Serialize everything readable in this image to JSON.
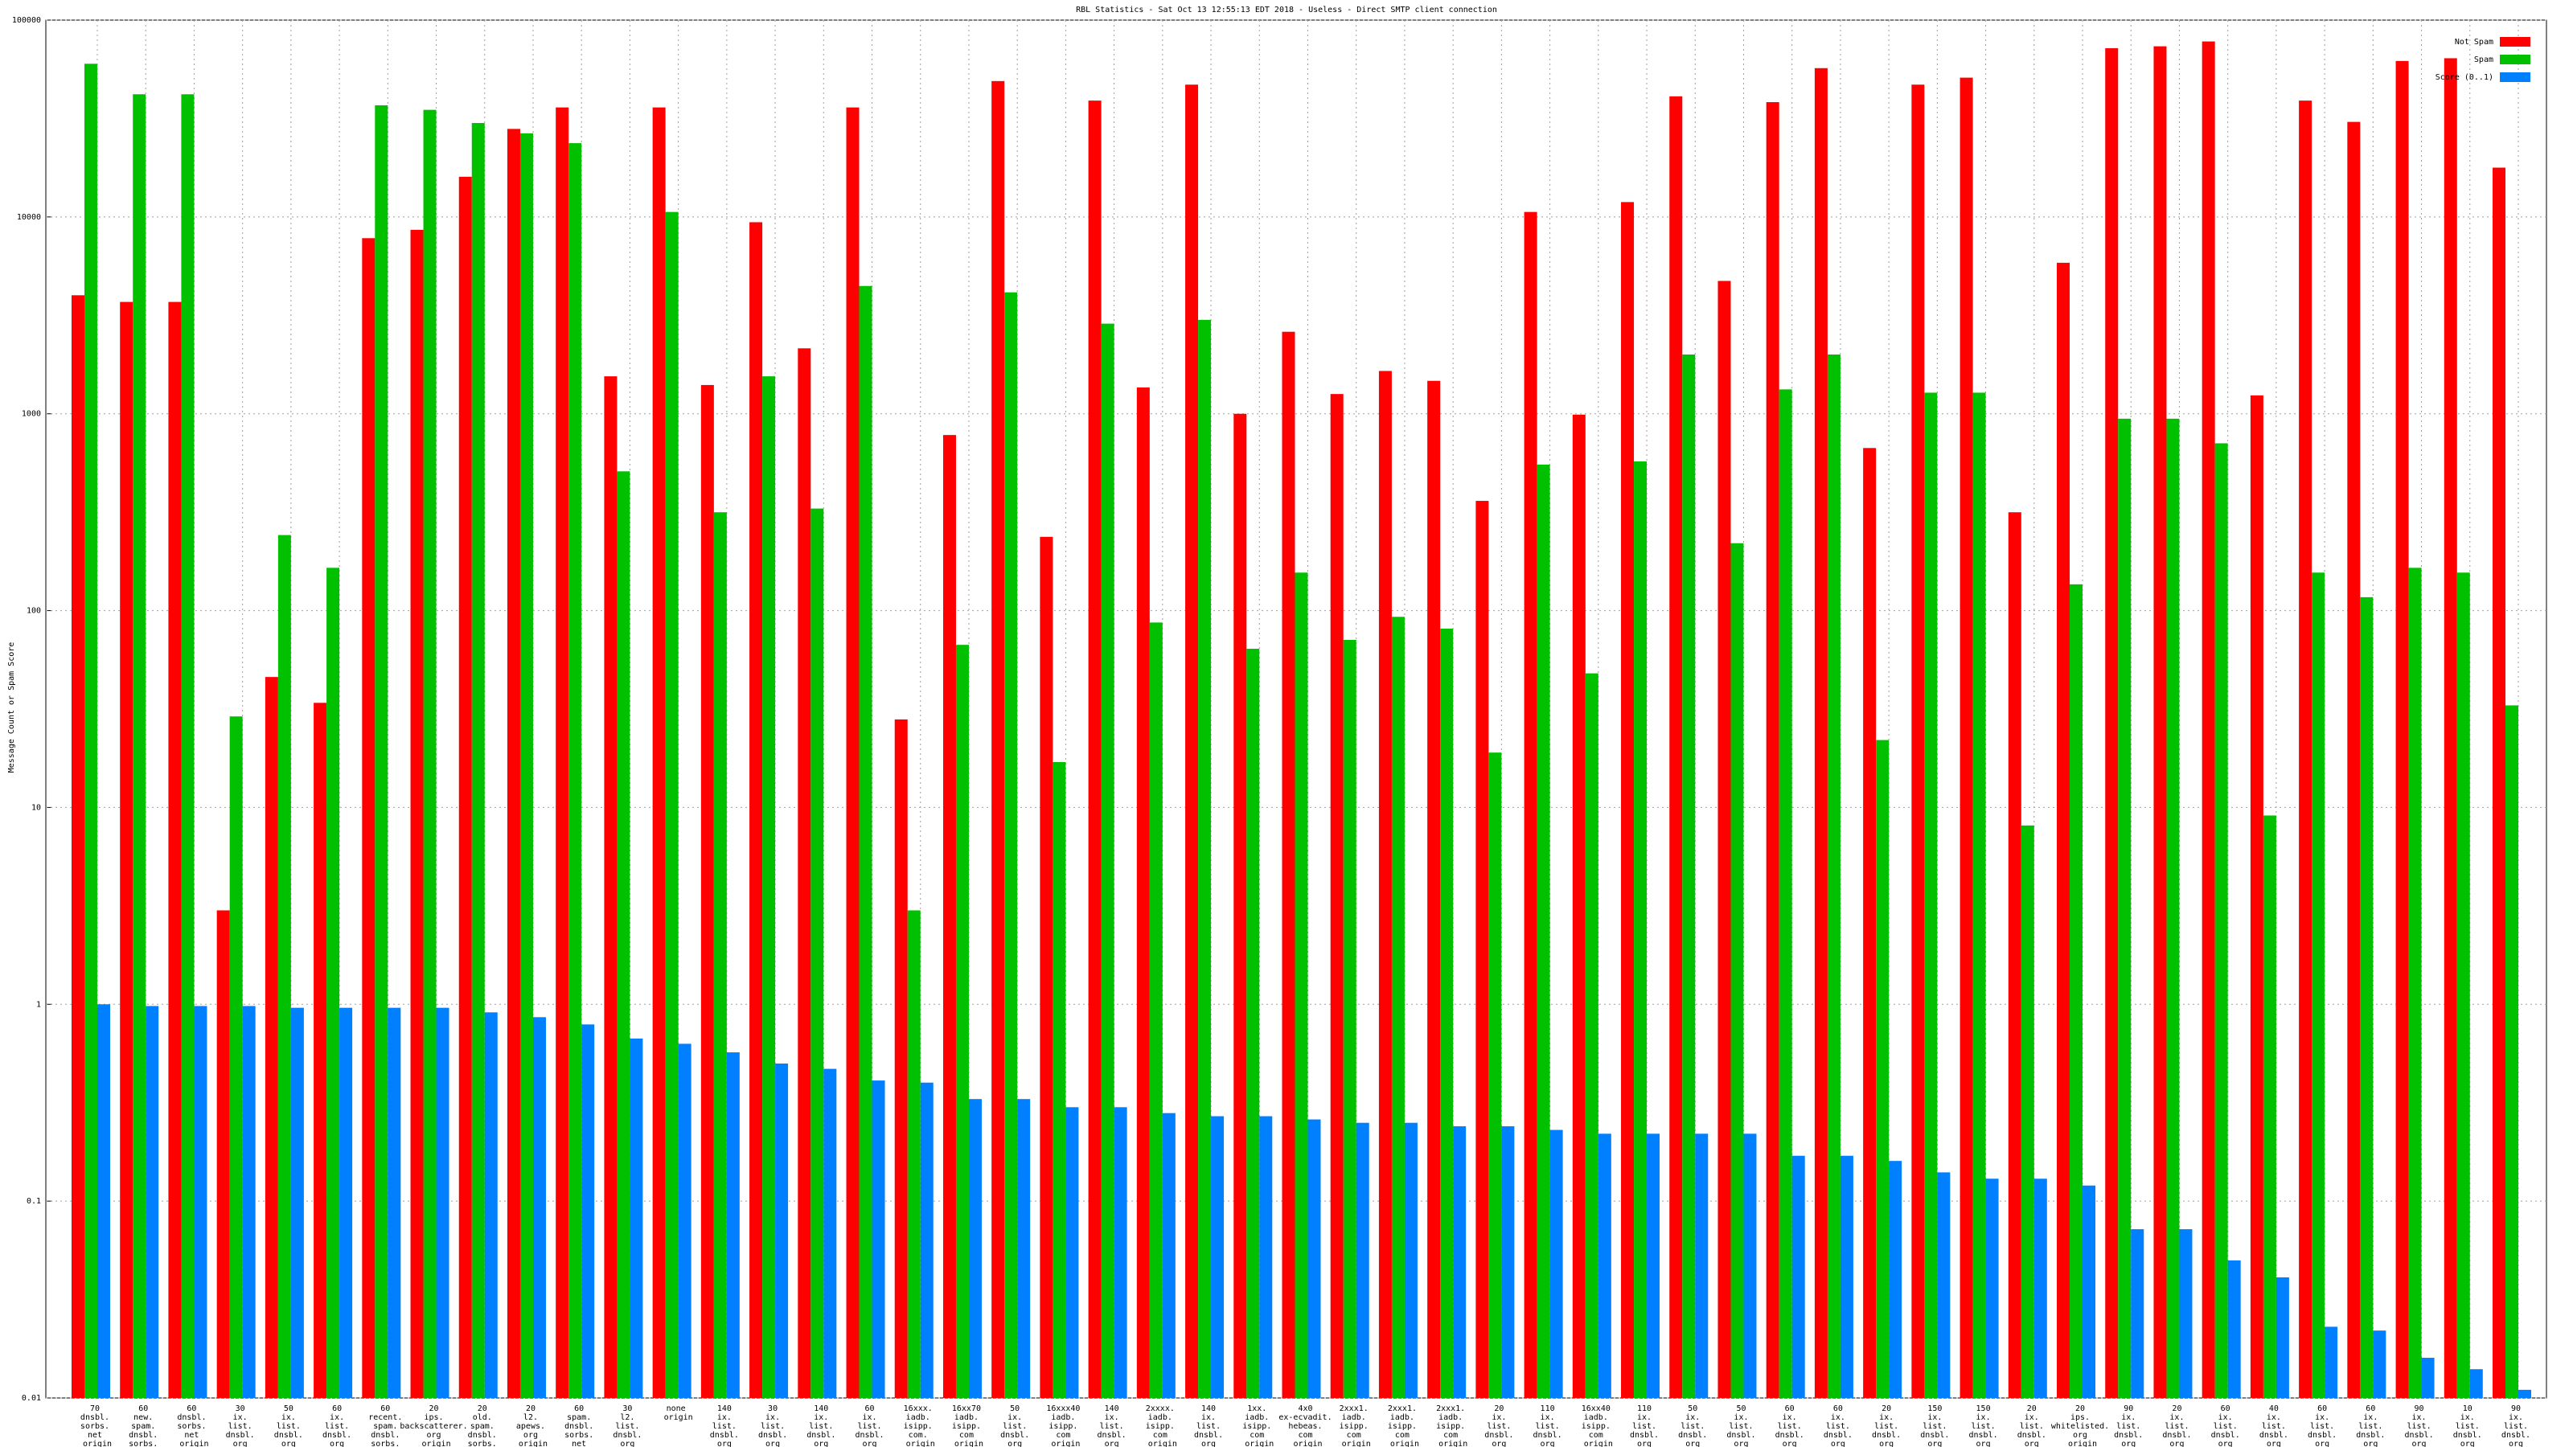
{
  "chart_data": {
    "type": "bar",
    "title": "RBL Statistics - Sat Oct 13 12:55:13 EDT 2018 - Useless - Direct SMTP client connection",
    "y_label": "Message Count or Spam Score",
    "y_scale": "log",
    "ylim": [
      0.01,
      100000
    ],
    "yticks": [
      0.01,
      0.1,
      1,
      10,
      100,
      1000,
      10000,
      100000
    ],
    "grid": true,
    "legend_position": "top right",
    "categories": [
      "70 dnsbl. sorbs. net origin",
      "60 new. spam. dnsbl. sorbs. net origin",
      "60 dnsbl. sorbs. net origin",
      "30 ix. list. dnsbl. org origin",
      "50 ix. list. dnsbl. org origin",
      "60 ix. list. dnsbl. org origin",
      "60 recent. spam. dnsbl. sorbs. net origin",
      "20 ips. backscatterer. org origin",
      "20 old. spam. dnsbl. sorbs. net origin",
      "20 l2. apews. org origin",
      "60 spam. dnsbl. sorbs. net origin",
      "30 l2. list. dnsbl. org origin",
      "none origin",
      "140 ix. list. dnsbl. org origin",
      "30 ix. list. dnsbl. org origin",
      "140 ix. list. dnsbl. org origin",
      "60 ix. list. dnsbl. org origin",
      "16xxx. iadb. isipp. com. origin",
      "16xx70 iadb. isipp. com origin",
      "50 ix. list. dnsbl. org origin",
      "16xxx40 iadb. isipp. com origin",
      "140 ix. list. dnsbl. org origin",
      "2xxxx. iadb. isipp. com origin",
      "140 ix. list. dnsbl. org origin",
      "1xx. iadb. isipp. com origin",
      "4x0 ex-ecvadit. hebeas. com origin",
      "2xxx1. iadb. isipp. com origin",
      "2xxx1. iadb. isipp. com origin",
      "2xxx1. iadb. isipp. com origin",
      "20 ix. list. dnsbl. org origin",
      "110 ix. list. dnsbl. org origin",
      "16xx40 iadb. isipp. com origin",
      "110 ix. list. dnsbl. org origin",
      "50 ix. list. dnsbl. org origin",
      "50 ix. list. dnsbl. org origin",
      "60 ix. list. dnsbl. org origin",
      "60 ix. list. dnsbl. org origin",
      "20 ix. list. dnsbl. org origin",
      "150 ix. list. dnsbl. org origin",
      "150 ix. list. dnsbl. org origin",
      "20 ix. list. dnsbl. org origin",
      "20 ips. whitelisted. org origin",
      "90 ix. list. dnsbl. org origin",
      "20 ix. list. dnsbl. org origin",
      "60 ix. list. dnsbl. org origin",
      "40 ix. list. dnsbl. org origin",
      "60 ix. list. dnsbl. org origin",
      "60 ix. list. dnsbl. org origin",
      "90 ix. list. dnsbl. org origin",
      "10 ix. list. dnsbl. org origin",
      "90 ix. list. dnsbl. org origin"
    ],
    "series": [
      {
        "name": "Not Spam",
        "color": "#ff0000",
        "values": [
          4000,
          3700,
          3700,
          3,
          46,
          34,
          7800,
          8600,
          16000,
          28000,
          36000,
          1550,
          36000,
          1400,
          9400,
          2150,
          36000,
          28,
          780,
          49000,
          237,
          39000,
          1360,
          47000,
          1000,
          2610,
          1260,
          1650,
          1470,
          361,
          10600,
          990,
          11900,
          41000,
          4730,
          38300,
          57000,
          670,
          47000,
          51000,
          316,
          5850,
          72000,
          73600,
          77900,
          1240,
          39000,
          30400,
          62000,
          64000,
          17800
        ]
      },
      {
        "name": "Spam",
        "color": "#00c000",
        "values": [
          60000,
          42000,
          42000,
          29,
          242,
          165,
          36900,
          35000,
          30000,
          26600,
          23700,
          510,
          10600,
          316,
          1550,
          330,
          4460,
          3,
          67,
          4140,
          17,
          2870,
          87,
          3000,
          64,
          156,
          71,
          93,
          81,
          19,
          552,
          48,
          573,
          2000,
          220,
          1330,
          2000,
          22,
          1280,
          1280,
          8.1,
          136,
          944,
          944,
          708,
          9.1,
          156,
          117,
          165,
          156,
          33
        ]
      },
      {
        "name": "Score (0..1)",
        "color": "#0080ff",
        "values": [
          1,
          0.98,
          0.98,
          0.98,
          0.96,
          0.96,
          0.96,
          0.96,
          0.91,
          0.86,
          0.79,
          0.67,
          0.63,
          0.57,
          0.5,
          0.47,
          0.41,
          0.4,
          0.33,
          0.33,
          0.3,
          0.3,
          0.28,
          0.27,
          0.27,
          0.26,
          0.25,
          0.25,
          0.24,
          0.24,
          0.23,
          0.22,
          0.22,
          0.22,
          0.22,
          0.17,
          0.17,
          0.16,
          0.14,
          0.13,
          0.13,
          0.12,
          0.072,
          0.072,
          0.05,
          0.041,
          0.023,
          0.022,
          0.016,
          0.014,
          0.011
        ]
      }
    ]
  }
}
